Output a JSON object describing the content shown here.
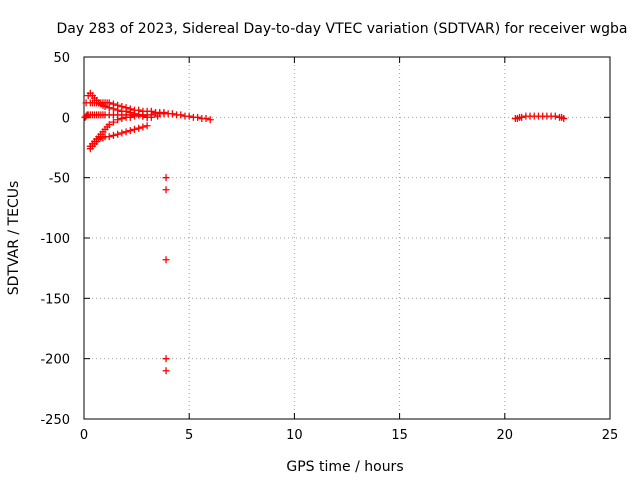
{
  "chart_data": {
    "type": "scatter",
    "title": "Day 283 of 2023, Sidereal Day-to-day VTEC variation (SDTVAR) for receiver wgba",
    "xlabel": "GPS time / hours",
    "ylabel": "SDTVAR / TECUs",
    "xlim": [
      0,
      25
    ],
    "ylim": [
      -250,
      50
    ],
    "xticks": [
      0,
      5,
      10,
      15,
      20,
      25
    ],
    "yticks": [
      -250,
      -200,
      -150,
      -100,
      -50,
      0,
      50
    ],
    "grid": true,
    "marker": "+",
    "color": "#ff0000",
    "x": [
      0.05,
      0.1,
      0.15,
      0.2,
      0.3,
      0.4,
      0.5,
      0.6,
      0.7,
      0.8,
      0.9,
      1.0,
      1.2,
      1.4,
      1.6,
      1.8,
      2.0,
      2.2,
      2.4,
      2.6,
      2.8,
      3.0,
      3.2,
      3.4,
      3.6,
      3.8,
      4.0,
      4.2,
      4.4,
      4.6,
      4.8,
      5.0,
      5.2,
      5.4,
      5.6,
      5.8,
      6.0,
      0.3,
      0.4,
      0.5,
      0.6,
      0.7,
      0.8,
      0.9,
      1.0,
      1.1,
      1.2,
      1.4,
      1.6,
      1.8,
      2.0,
      2.2,
      2.4,
      2.6,
      2.8,
      3.0,
      3.2,
      3.4,
      3.6,
      3.8,
      0.1,
      0.2,
      0.3,
      0.4,
      0.5,
      0.6,
      0.7,
      0.8,
      0.9,
      1.0,
      1.2,
      1.4,
      1.6,
      1.8,
      2.0,
      2.2,
      2.4,
      2.6,
      2.8,
      3.0,
      3.2,
      3.5,
      0.3,
      0.4,
      0.5,
      0.6,
      0.7,
      0.8,
      0.9,
      1.0,
      1.1,
      1.2,
      1.4,
      1.6,
      1.8,
      2.0,
      2.2,
      2.4,
      2.6,
      2.8,
      3.0,
      0.3,
      0.4,
      0.5,
      0.6,
      0.7,
      0.8,
      0.9,
      1.0,
      1.2,
      1.4,
      1.6,
      1.8,
      2.0,
      2.2,
      2.4,
      2.6,
      2.8,
      3.0,
      3.9,
      3.9,
      3.9,
      3.9,
      3.9,
      20.5,
      20.6,
      20.7,
      20.8,
      21.0,
      21.2,
      21.4,
      21.6,
      21.8,
      22.0,
      22.2,
      22.4,
      22.6,
      22.7,
      22.8
    ],
    "y": [
      0,
      1,
      2,
      2,
      2,
      2,
      2,
      2,
      2,
      2,
      2,
      2,
      2,
      2,
      2,
      2,
      2,
      2,
      2,
      2,
      2,
      2,
      2,
      3,
      3,
      3,
      3,
      3,
      2,
      2,
      1,
      1,
      0,
      0,
      -1,
      -1,
      -2,
      12,
      12,
      12,
      12,
      12,
      12,
      12,
      12,
      12,
      12,
      11,
      10,
      9,
      8,
      7,
      6,
      6,
      5,
      5,
      5,
      4,
      4,
      4,
      12,
      18,
      20,
      18,
      16,
      14,
      12,
      11,
      10,
      9,
      8,
      7,
      6,
      5,
      5,
      4,
      3,
      2,
      1,
      0,
      0,
      1,
      -24,
      -22,
      -20,
      -18,
      -16,
      -14,
      -12,
      -10,
      -8,
      -6,
      -4,
      -2,
      -1,
      0,
      0,
      1,
      2,
      1,
      0,
      -26,
      -24,
      -22,
      -20,
      -18,
      -17,
      -17,
      -16,
      -16,
      -15,
      -14,
      -13,
      -12,
      -11,
      -10,
      -9,
      -8,
      -7,
      -50,
      -60,
      -118,
      -200,
      -210,
      -1,
      -1,
      0,
      0,
      1,
      1,
      1,
      1,
      1,
      1,
      1,
      1,
      0,
      0,
      -1
    ]
  }
}
